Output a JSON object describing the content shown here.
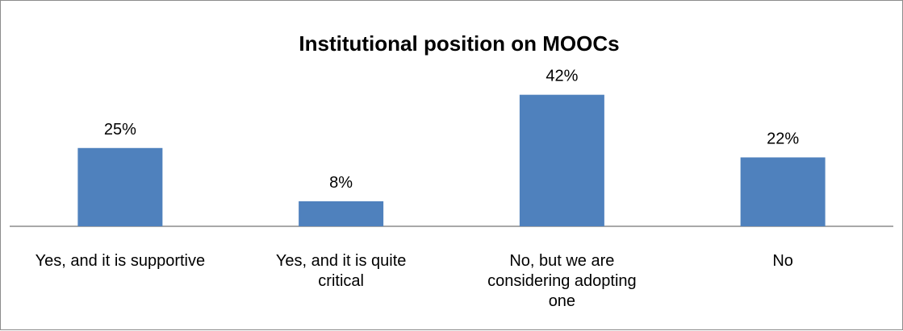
{
  "chart_data": {
    "type": "bar",
    "title": "Institutional position on MOOCs",
    "xlabel": "",
    "ylabel": "",
    "categories": [
      [
        "Yes, and it is supportive"
      ],
      [
        "Yes, and it is quite",
        "critical"
      ],
      [
        "No, but we are",
        "considering adopting",
        "one"
      ],
      [
        "No"
      ]
    ],
    "values": [
      25,
      8,
      42,
      22
    ],
    "data_labels": [
      "25%",
      "8%",
      "42%",
      "22%"
    ],
    "ylim": [
      0,
      45
    ],
    "grid": false,
    "legend": "none",
    "colors": {
      "bar": "#4f81bd",
      "axis": "#8c8c8c",
      "border": "#8c8c8c"
    }
  }
}
